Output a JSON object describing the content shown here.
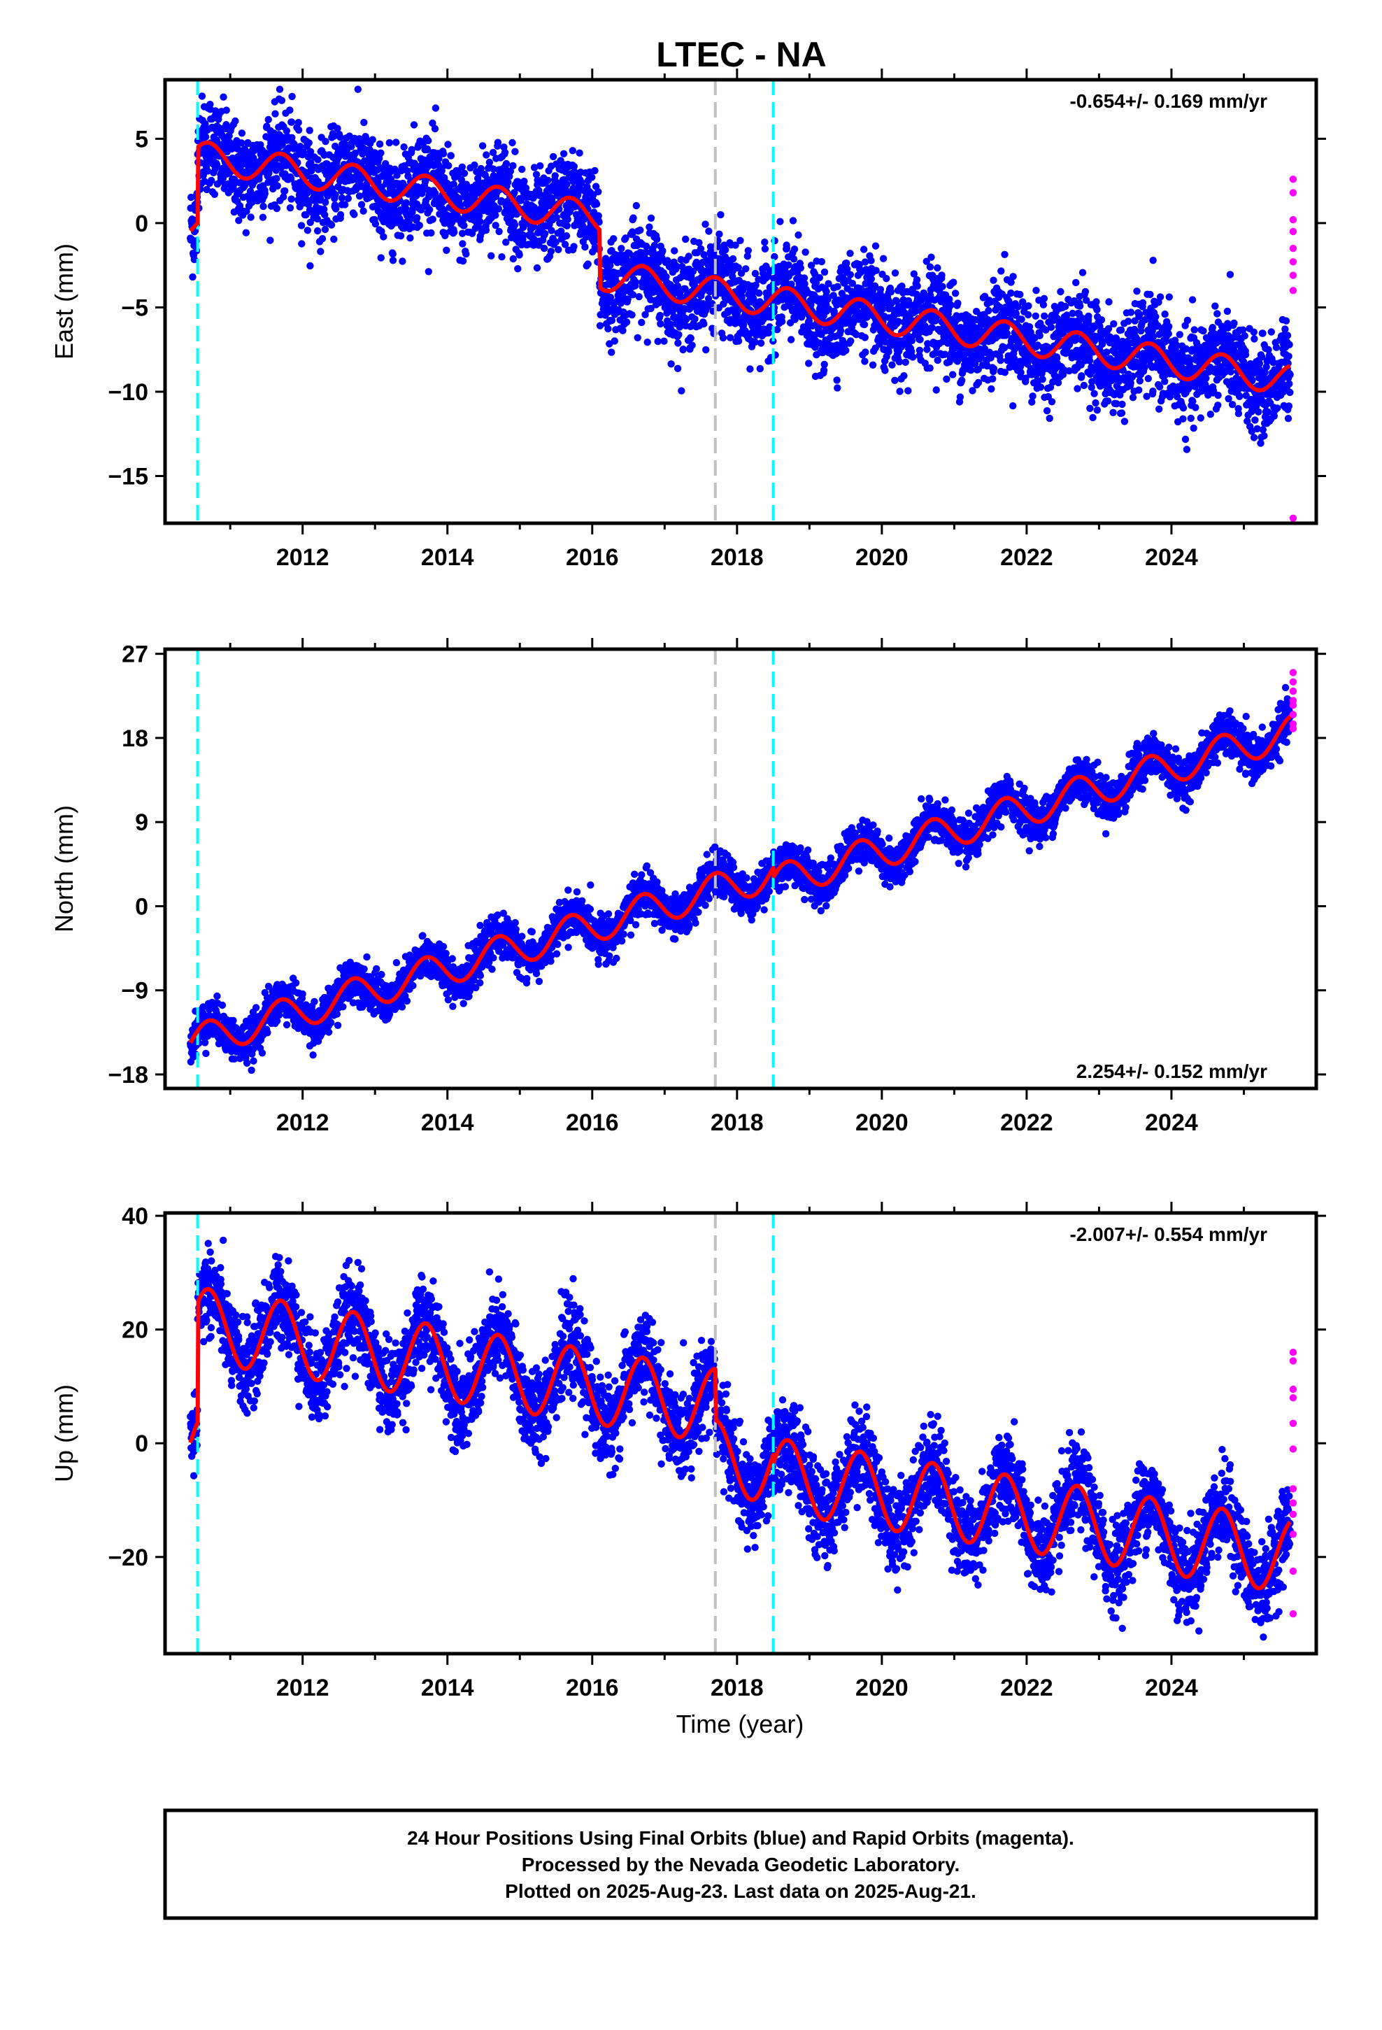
{
  "title": "LTEC - NA",
  "xlabel": "Time (year)",
  "footer": {
    "line1": "24 Hour Positions Using Final Orbits (blue) and Rapid Orbits (magenta).",
    "line2": "Processed by the Nevada Geodetic Laboratory.",
    "line3": "Plotted on 2025-Aug-23. Last data on 2025-Aug-21."
  },
  "colors": {
    "final_points": "#0000ff",
    "rapid_points": "#ff00ff",
    "model_line": "#ff0000",
    "equipment_change": "#00ffff",
    "other_event": "#c0c0c0"
  },
  "chart_data": [
    {
      "type": "scatter",
      "panel": "East",
      "ylabel": "East (mm)",
      "rate_label": "-0.654+/- 0.169 mm/yr",
      "xlim": [
        2010.1,
        2026.0
      ],
      "ylim": [
        -17.8,
        8.5
      ],
      "yticks": [
        5,
        0,
        -5,
        -10,
        -15
      ],
      "xticks": [
        2012,
        2014,
        2016,
        2018,
        2020,
        2022,
        2024
      ],
      "start": 2010.45,
      "end": 2025.64,
      "vlines_cyan": [
        2010.55,
        2018.5
      ],
      "vlines_gray": [
        2017.7
      ],
      "model": {
        "segments": [
          {
            "from": 2010.45,
            "to": 2010.55,
            "offset": -0.5
          },
          {
            "from": 2010.55,
            "to": 2016.1,
            "offset": 4.0
          },
          {
            "from": 2016.1,
            "to": 2017.7,
            "offset": 0.6
          },
          {
            "from": 2017.7,
            "to": 2025.64,
            "offset": 0.6
          }
        ],
        "rate_mm_per_yr": -0.654,
        "annual_amplitude": 0.9,
        "ref_year": 2010.5,
        "noise_sd": 1.4
      },
      "rapid_values": [
        2.6,
        1.8,
        0.2,
        -0.5,
        -1.5,
        -2.3,
        -3.1,
        -4.0,
        -17.5
      ]
    },
    {
      "type": "scatter",
      "panel": "North",
      "ylabel": "North (mm)",
      "rate_label": "2.254+/- 0.152 mm/yr",
      "xlim": [
        2010.1,
        2026.0
      ],
      "ylim": [
        -19.5,
        27.5
      ],
      "yticks": [
        27,
        18,
        9,
        0,
        -9,
        -18
      ],
      "xticks": [
        2012,
        2014,
        2016,
        2018,
        2020,
        2022,
        2024
      ],
      "start": 2010.45,
      "end": 2025.64,
      "vlines_cyan": [
        2010.55,
        2018.5
      ],
      "vlines_gray": [
        2017.7
      ],
      "model": {
        "segments": [
          {
            "from": 2010.45,
            "to": 2018.5,
            "offset": -14.5
          },
          {
            "from": 2018.5,
            "to": 2025.64,
            "offset": -15.5
          }
        ],
        "rate_mm_per_yr": 2.254,
        "annual_amplitude": 1.8,
        "ref_year": 2010.5,
        "noise_sd": 1.1
      },
      "rapid_values": [
        25.0,
        24.0,
        23.0,
        22.0,
        21.5,
        20.5,
        19.5,
        19.0
      ]
    },
    {
      "type": "scatter",
      "panel": "Up",
      "ylabel": "Up (mm)",
      "rate_label": "-2.007+/- 0.554 mm/yr",
      "xlim": [
        2010.1,
        2026.0
      ],
      "ylim": [
        -37,
        40.5
      ],
      "yticks": [
        40,
        20,
        0,
        -20
      ],
      "xticks": [
        2012,
        2014,
        2016,
        2018,
        2020,
        2022,
        2024
      ],
      "start": 2010.45,
      "end": 2025.64,
      "vlines_cyan": [
        2010.55,
        2018.5
      ],
      "vlines_gray": [
        2017.7
      ],
      "model": {
        "segments": [
          {
            "from": 2010.45,
            "to": 2010.55,
            "offset": 0.0
          },
          {
            "from": 2010.55,
            "to": 2017.7,
            "offset": 21.0
          },
          {
            "from": 2017.7,
            "to": 2018.5,
            "offset": 12.0
          },
          {
            "from": 2018.5,
            "to": 2025.64,
            "offset": 10.5
          }
        ],
        "rate_mm_per_yr": -2.007,
        "annual_amplitude": 6.5,
        "ref_year": 2010.5,
        "noise_sd": 3.8
      },
      "rapid_values": [
        16.0,
        14.5,
        9.5,
        8.0,
        3.5,
        -1.0,
        -8.0,
        -10.5,
        -12.5,
        -16.0,
        -22.5,
        -30.0
      ]
    }
  ]
}
